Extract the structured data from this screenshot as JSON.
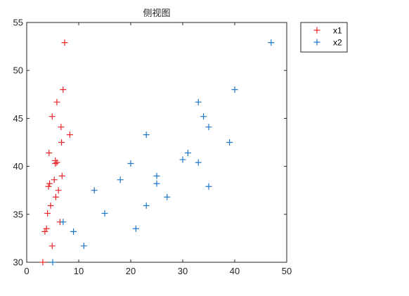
{
  "chart_data": {
    "type": "scatter",
    "title": "侧视图",
    "xlabel": "",
    "ylabel": "",
    "xlim": [
      0,
      50
    ],
    "ylim": [
      30,
      55
    ],
    "x_ticks": [
      0,
      10,
      20,
      30,
      40,
      50
    ],
    "y_ticks": [
      30,
      35,
      40,
      45,
      50,
      55
    ],
    "marker": "plus",
    "legend_position": "outside-top-right",
    "series": [
      {
        "name": "x1",
        "color": "#e8262b",
        "points": [
          [
            7.3,
            52.9
          ],
          [
            7.0,
            48.0
          ],
          [
            5.8,
            46.7
          ],
          [
            4.9,
            45.2
          ],
          [
            6.6,
            44.1
          ],
          [
            8.3,
            43.3
          ],
          [
            6.7,
            42.5
          ],
          [
            4.3,
            41.4
          ],
          [
            5.5,
            40.6
          ],
          [
            5.8,
            40.4
          ],
          [
            5.5,
            40.3
          ],
          [
            6.8,
            39.0
          ],
          [
            5.3,
            38.6
          ],
          [
            4.4,
            38.2
          ],
          [
            4.2,
            37.9
          ],
          [
            6.1,
            37.5
          ],
          [
            5.6,
            36.8
          ],
          [
            4.6,
            35.9
          ],
          [
            4.0,
            35.1
          ],
          [
            6.4,
            34.2
          ],
          [
            3.8,
            33.5
          ],
          [
            3.5,
            33.2
          ],
          [
            4.9,
            31.7
          ],
          [
            3.1,
            30.0
          ]
        ]
      },
      {
        "name": "x2",
        "color": "#1f77c8",
        "points": [
          [
            47.0,
            52.9
          ],
          [
            40.0,
            48.0
          ],
          [
            33.0,
            46.7
          ],
          [
            34.0,
            45.2
          ],
          [
            35.0,
            44.1
          ],
          [
            23.0,
            43.3
          ],
          [
            39.0,
            42.5
          ],
          [
            31.0,
            41.4
          ],
          [
            30.0,
            40.7
          ],
          [
            33.0,
            40.4
          ],
          [
            20.0,
            40.3
          ],
          [
            25.0,
            39.0
          ],
          [
            18.0,
            38.6
          ],
          [
            25.0,
            38.2
          ],
          [
            35.0,
            37.9
          ],
          [
            13.0,
            37.5
          ],
          [
            27.0,
            36.8
          ],
          [
            23.0,
            35.9
          ],
          [
            15.0,
            35.1
          ],
          [
            7.0,
            34.2
          ],
          [
            21.0,
            33.5
          ],
          [
            9.0,
            33.2
          ],
          [
            11.0,
            31.7
          ],
          [
            5.0,
            30.0
          ]
        ]
      }
    ]
  }
}
